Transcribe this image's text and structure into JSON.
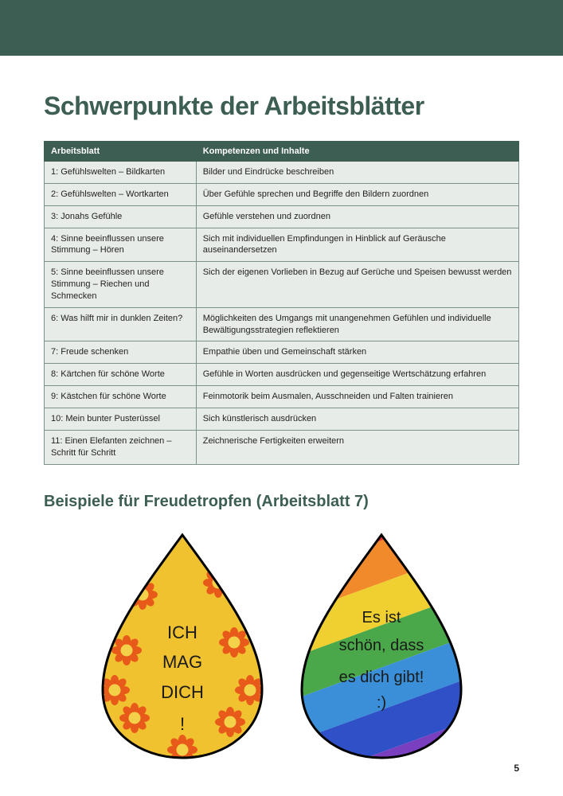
{
  "header_bar_color": "#3d5e52",
  "main_title": "Schwerpunkte der Arbeitsblätter",
  "table": {
    "columns": [
      "Arbeitsblatt",
      "Kompetenzen und Inhalte"
    ],
    "rows": [
      [
        "1: Gefühlswelten – Bildkarten",
        "Bilder und Eindrücke beschreiben"
      ],
      [
        "2: Gefühlswelten – Wortkarten",
        "Über Gefühle sprechen und Begriffe den Bildern zuordnen"
      ],
      [
        "3: Jonahs Gefühle",
        "Gefühle verstehen und zuordnen"
      ],
      [
        "4: Sinne beeinflussen unsere Stimmung – Hören",
        "Sich mit individuellen Empfindungen in Hinblick auf Geräusche auseinandersetzen"
      ],
      [
        "5: Sinne beeinflussen unsere Stimmung – Riechen und Schmecken",
        "Sich der eigenen Vorlieben in Bezug auf Gerüche und Speisen bewusst werden"
      ],
      [
        "6: Was hilft mir in dunklen Zeiten?",
        "Möglichkeiten des Umgangs mit unangenehmen Gefühlen und individuelle Bewältigungsstrategien reflektieren"
      ],
      [
        "7: Freude schenken",
        "Empathie üben und Gemeinschaft stärken"
      ],
      [
        "8: Kärtchen für schöne Worte",
        "Gefühle in Worten ausdrücken und gegenseitige Wertschätzung erfahren"
      ],
      [
        "9: Kästchen für schöne Worte",
        "Feinmotorik beim Ausmalen, Ausschneiden und Falten trainieren"
      ],
      [
        "10: Mein bunter Pusterüssel",
        "Sich künstlerisch ausdrücken"
      ],
      [
        "11: Einen Elefanten zeichnen – Schritt für Schritt",
        "Zeichnerische Fertigkeiten erweitern"
      ]
    ],
    "header_bg": "#3d5e52",
    "header_fg": "#ffffff",
    "cell_bg": "#e8ece8",
    "border_color": "#7a9288",
    "font_size": 11
  },
  "subtitle": "Beispiele für Freudetropfen (Arbeitsblatt 7)",
  "drops": {
    "left": {
      "bg_color": "#f0c230",
      "text_lines": [
        "ICH",
        "MAG",
        "DICH",
        "!"
      ],
      "text_color": "#1a1a1a",
      "decoration": "sunflowers",
      "flower_petal_color": "#e85a1a",
      "flower_center_color": "#f3d24a"
    },
    "right": {
      "stripes": [
        "#e83535",
        "#f08a2a",
        "#f0d030",
        "#4aa84a",
        "#3a8fd8",
        "#3050c8",
        "#7a3fbf"
      ],
      "text_lines": [
        "Es ist",
        "schön, dass",
        "es dich gibt!",
        ":)"
      ],
      "text_color": "#1a1a1a"
    }
  },
  "page_number": "5",
  "colors": {
    "brand_green": "#3d5e52",
    "page_bg": "#ffffff"
  }
}
